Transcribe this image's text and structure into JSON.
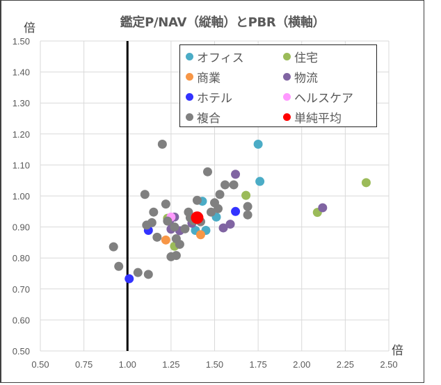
{
  "chart_data": {
    "type": "scatter",
    "title": "鑑定P/NAV（縦軸）とPBR（横軸）",
    "xlabel": "倍",
    "ylabel": "倍",
    "xlim": [
      0.5,
      2.5
    ],
    "ylim": [
      0.5,
      1.5
    ],
    "x_ticks": [
      "0.50",
      "0.75",
      "1.00",
      "1.25",
      "1.50",
      "1.75",
      "2.00",
      "2.25",
      "2.50"
    ],
    "y_ticks": [
      "1.50",
      "1.40",
      "1.30",
      "1.20",
      "1.10",
      "1.00",
      "0.90",
      "0.80",
      "0.70",
      "0.60",
      "0.50"
    ],
    "grid": true,
    "reference_line": {
      "x": 1.0,
      "color": "#000000"
    },
    "legend_position": "upper right (inside)",
    "series": [
      {
        "name": "オフィス",
        "color": "#4BACC6",
        "points": [
          [
            1.75,
            1.167
          ],
          [
            1.76,
            1.047
          ],
          [
            1.43,
            0.983
          ],
          [
            1.51,
            0.932
          ],
          [
            1.39,
            0.889
          ],
          [
            1.45,
            0.889
          ]
        ]
      },
      {
        "name": "住宅",
        "color": "#9BBB59",
        "points": [
          [
            2.37,
            1.043
          ],
          [
            2.09,
            0.947
          ],
          [
            1.68,
            1.002
          ],
          [
            1.23,
            0.928
          ],
          [
            1.27,
            0.838
          ]
        ]
      },
      {
        "name": "商業",
        "color": "#F79646",
        "points": [
          [
            1.42,
            0.875
          ],
          [
            1.22,
            0.858
          ]
        ]
      },
      {
        "name": "物流",
        "color": "#8064A2",
        "points": [
          [
            1.62,
            1.07
          ],
          [
            2.12,
            0.962
          ],
          [
            1.55,
            0.897
          ],
          [
            1.59,
            0.909
          ],
          [
            1.27,
            0.932
          ],
          [
            1.25,
            0.893
          ],
          [
            1.3,
            0.888
          ],
          [
            1.24,
            0.918
          ],
          [
            1.37,
            0.912
          ]
        ]
      },
      {
        "name": "ホテル",
        "color": "#3333FF",
        "points": [
          [
            1.62,
            0.95
          ],
          [
            1.12,
            0.889
          ],
          [
            1.01,
            0.733
          ]
        ]
      },
      {
        "name": "ヘルスケア",
        "color": "#FF99FF",
        "points": [
          [
            1.25,
            0.932
          ]
        ]
      },
      {
        "name": "複合",
        "color": "#808080",
        "points": [
          [
            1.2,
            1.167
          ],
          [
            1.46,
            1.078
          ],
          [
            1.61,
            1.036
          ],
          [
            1.56,
            1.036
          ],
          [
            1.53,
            1.005
          ],
          [
            1.1,
            1.005
          ],
          [
            1.4,
            0.986
          ],
          [
            1.5,
            0.978
          ],
          [
            1.22,
            0.974
          ],
          [
            1.69,
            0.966
          ],
          [
            1.52,
            0.959
          ],
          [
            1.48,
            0.948
          ],
          [
            1.35,
            0.948
          ],
          [
            1.15,
            0.948
          ],
          [
            1.23,
            0.919
          ],
          [
            1.14,
            0.914
          ],
          [
            1.11,
            0.906
          ],
          [
            1.36,
            0.93
          ],
          [
            1.38,
            0.92
          ],
          [
            1.42,
            0.917
          ],
          [
            1.27,
            0.9
          ],
          [
            1.33,
            0.894
          ],
          [
            1.17,
            0.867
          ],
          [
            1.28,
            0.862
          ],
          [
            1.3,
            0.844
          ],
          [
            1.25,
            0.804
          ],
          [
            1.28,
            0.808
          ],
          [
            0.92,
            0.836
          ],
          [
            0.95,
            0.773
          ],
          [
            1.06,
            0.753
          ],
          [
            1.12,
            0.747
          ],
          [
            1.69,
            0.939
          ]
        ]
      },
      {
        "name": "単純平均",
        "color": "#FF0000",
        "points": [
          [
            1.4,
            0.93
          ]
        ]
      }
    ]
  },
  "legend": {
    "items": [
      {
        "label": "オフィス",
        "color": "#4BACC6"
      },
      {
        "label": "住宅",
        "color": "#9BBB59"
      },
      {
        "label": "商業",
        "color": "#F79646"
      },
      {
        "label": "物流",
        "color": "#8064A2"
      },
      {
        "label": "ホテル",
        "color": "#3333FF"
      },
      {
        "label": "ヘルスケア",
        "color": "#FF99FF"
      },
      {
        "label": "複合",
        "color": "#808080"
      },
      {
        "label": "単純平均",
        "color": "#FF0000"
      }
    ]
  }
}
